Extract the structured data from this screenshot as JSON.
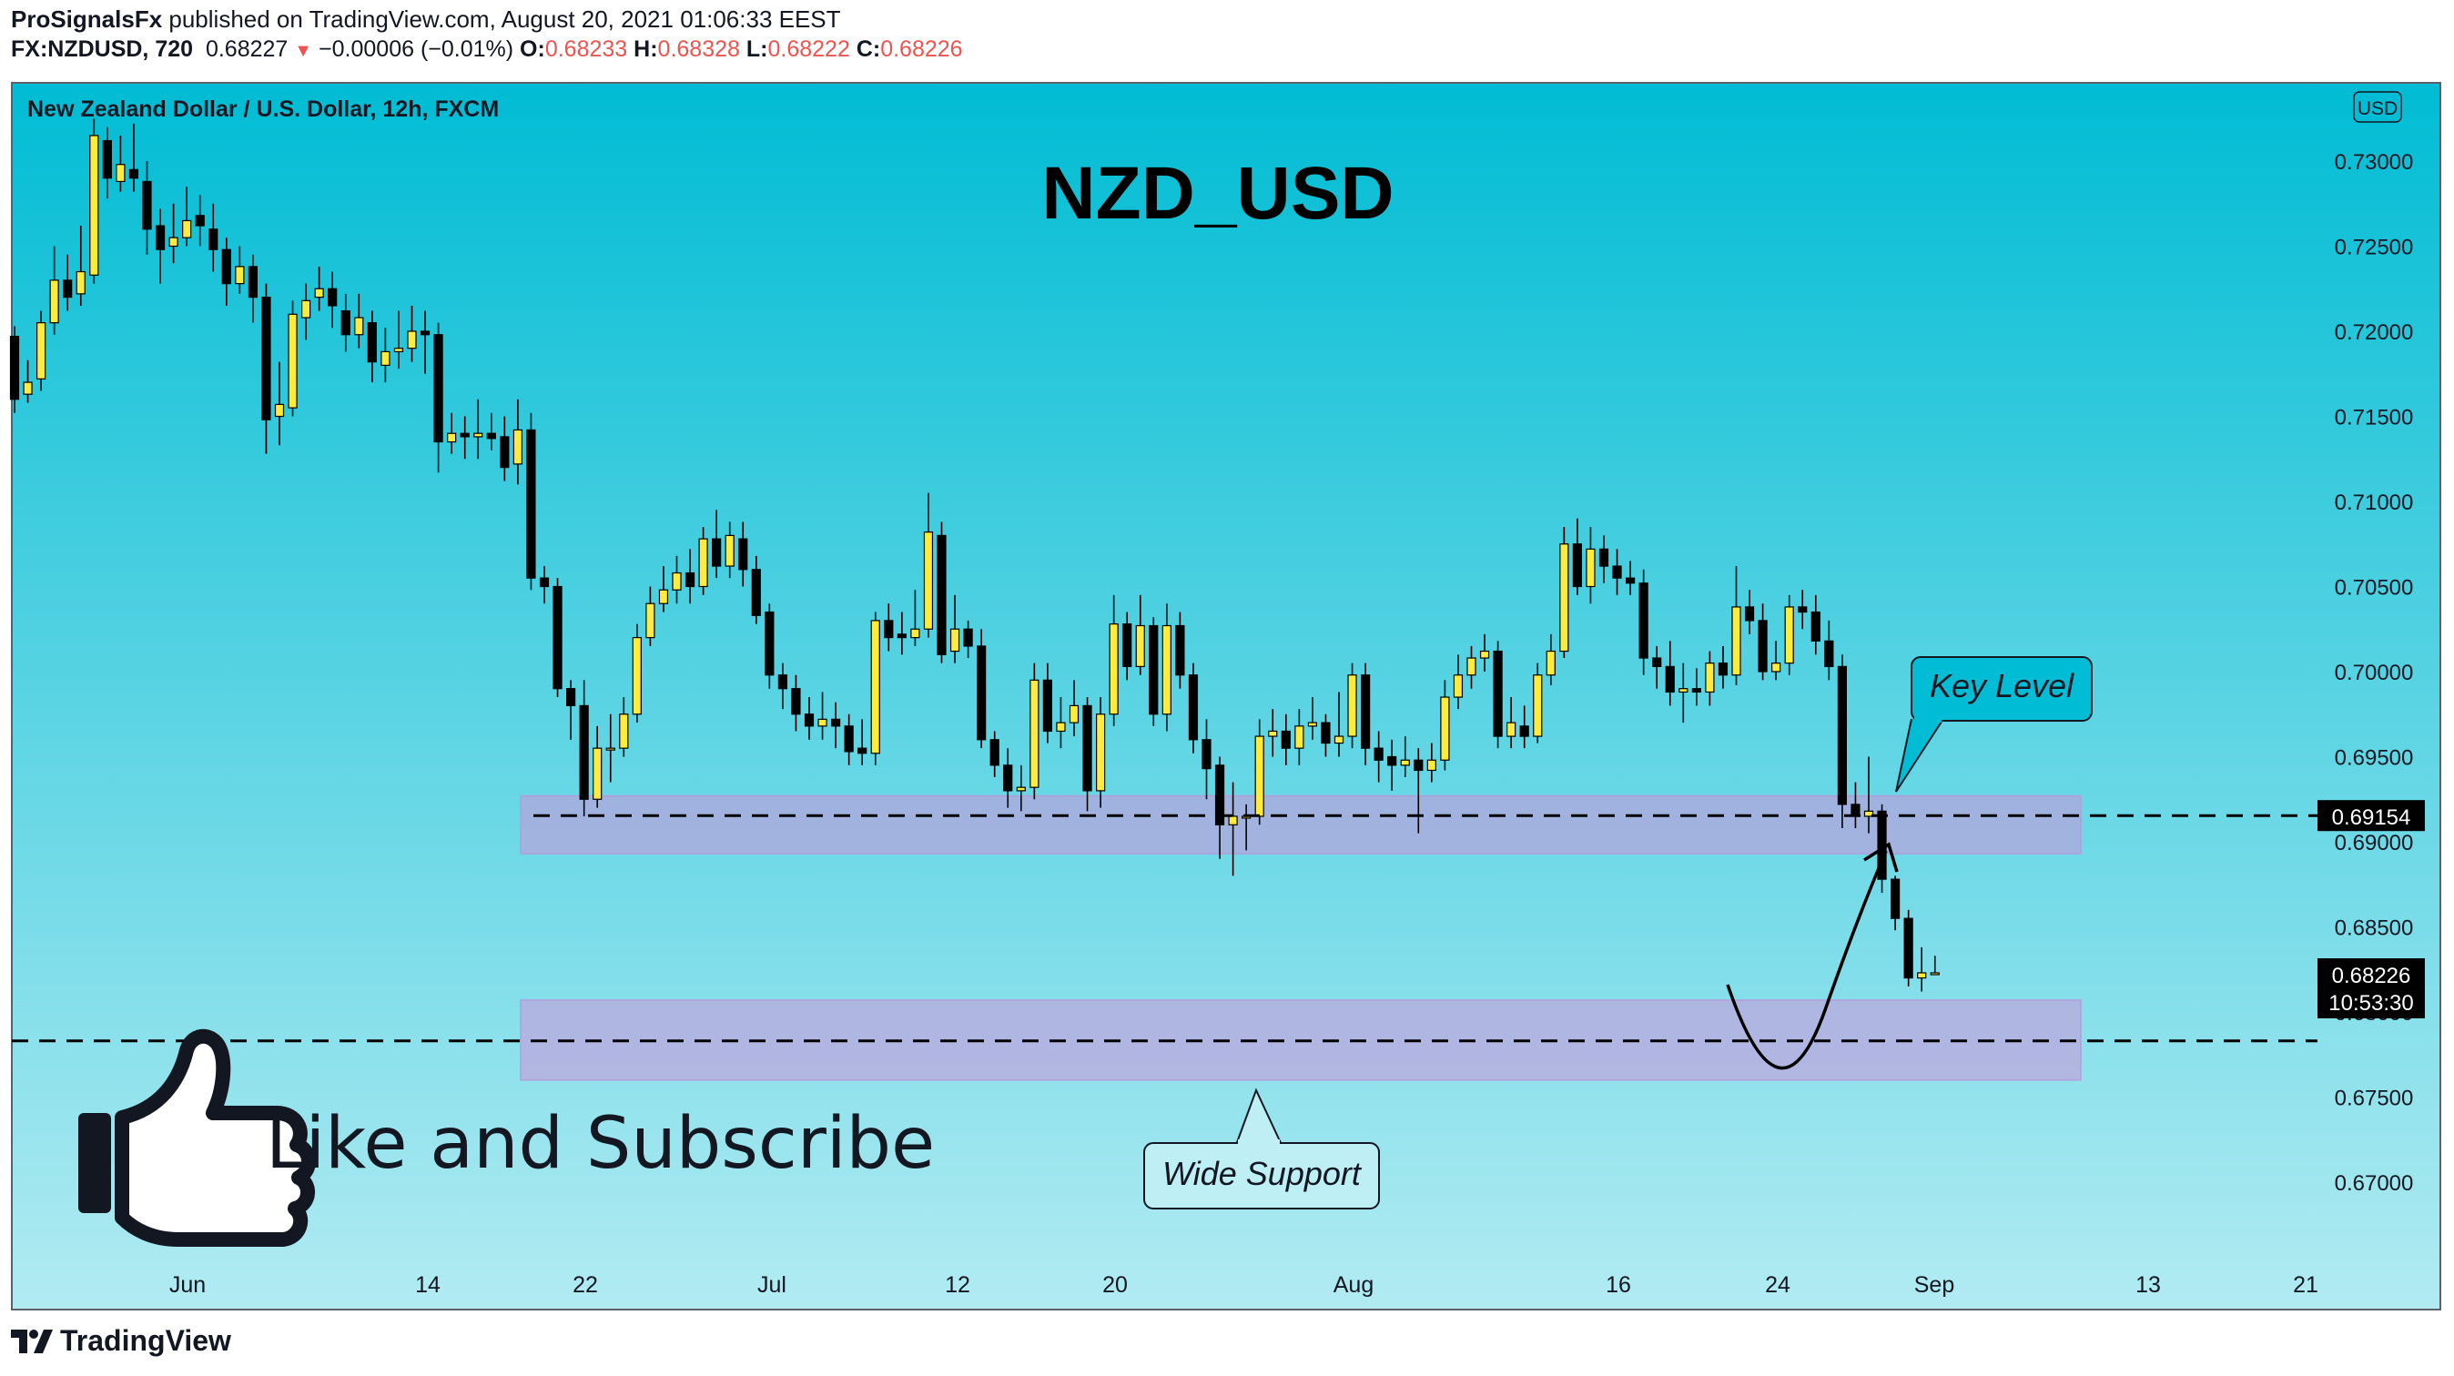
{
  "header": {
    "author": "ProSignalsFx",
    "published_text": "published on TradingView.com, August 20, 2021 01:06:33 EEST",
    "symbol": "FX:NZDUSD, 720",
    "last": "0.68227",
    "change_arrow": "▼",
    "change": "−0.00006 (−0.01%)",
    "o_label": "O:",
    "o_value": "0.68233",
    "h_label": "H:",
    "h_value": "0.68328",
    "l_label": "L:",
    "l_value": "0.68222",
    "c_label": "C:",
    "c_value": "0.68226"
  },
  "legend": {
    "text": "New Zealand Dollar / U.S. Dollar, 12h, FXCM"
  },
  "currency_badge": "USD",
  "chart_title": "NZD_USD",
  "annotations": {
    "key_level": "Key Level",
    "wide_support": "Wide Support",
    "cta": "Like and Subscribe"
  },
  "price_labels": {
    "key_level_price": "0.69154",
    "last_price": "0.68226",
    "countdown": "10:53:30"
  },
  "footer": {
    "brand": "TradingView"
  },
  "colors": {
    "bg_top": "#00bcd4",
    "bg_bottom": "#b2ebf2",
    "bull": "#ffeb3b",
    "bear": "#000000",
    "zone": "#ce93d8",
    "text": "#131722",
    "red": "#ef5350"
  },
  "chart_data": {
    "type": "candlestick",
    "timeframe": "12h",
    "y_axis": {
      "ticks": [
        "0.73000",
        "0.72500",
        "0.72000",
        "0.71500",
        "0.71000",
        "0.70500",
        "0.70000",
        "0.69500",
        "0.69000",
        "0.68500",
        "0.68000",
        "0.67500",
        "0.67000"
      ],
      "range": [
        0.664,
        0.7345
      ]
    },
    "x_axis": {
      "ticks": [
        "Jun",
        "14",
        "22",
        "Jul",
        "12",
        "20",
        "Aug",
        "16",
        "24",
        "Sep",
        "13",
        "21"
      ],
      "range_candles": [
        0,
        174
      ]
    },
    "zones": [
      {
        "name": "Key Level",
        "from": 0.6893,
        "to": 0.6927,
        "dashed_level": 0.69154
      },
      {
        "name": "Wide Support",
        "from": 0.676,
        "to": 0.6807,
        "dashed_level": 0.6783
      }
    ],
    "projection": {
      "from_price": 0.682,
      "low_price": 0.6767,
      "to_price": 0.69
    },
    "candles": [
      [
        0,
        0.7197,
        0.716,
        0.7203,
        0.7152
      ],
      [
        1,
        0.7163,
        0.717,
        0.7183,
        0.7158
      ],
      [
        2,
        0.7172,
        0.7205,
        0.7212,
        0.7165
      ],
      [
        3,
        0.7205,
        0.723,
        0.725,
        0.7198
      ],
      [
        4,
        0.723,
        0.722,
        0.7245,
        0.7212
      ],
      [
        5,
        0.7222,
        0.7235,
        0.7262,
        0.7215
      ],
      [
        6,
        0.7233,
        0.7315,
        0.7325,
        0.7228
      ],
      [
        7,
        0.7312,
        0.729,
        0.732,
        0.7278
      ],
      [
        8,
        0.7288,
        0.7298,
        0.7315,
        0.7282
      ],
      [
        9,
        0.7295,
        0.729,
        0.7322,
        0.7282
      ],
      [
        10,
        0.7288,
        0.726,
        0.73,
        0.7245
      ],
      [
        11,
        0.7262,
        0.7248,
        0.7272,
        0.7228
      ],
      [
        12,
        0.725,
        0.7255,
        0.7275,
        0.724
      ],
      [
        13,
        0.7255,
        0.7265,
        0.7285,
        0.725
      ],
      [
        14,
        0.7268,
        0.7262,
        0.728,
        0.725
      ],
      [
        15,
        0.726,
        0.7248,
        0.7275,
        0.7235
      ],
      [
        16,
        0.7248,
        0.7228,
        0.7255,
        0.7215
      ],
      [
        17,
        0.7228,
        0.7238,
        0.725,
        0.7222
      ],
      [
        18,
        0.7238,
        0.722,
        0.7245,
        0.7205
      ],
      [
        19,
        0.722,
        0.7148,
        0.7228,
        0.7128
      ],
      [
        20,
        0.715,
        0.7157,
        0.7182,
        0.7133
      ],
      [
        21,
        0.7155,
        0.721,
        0.7218,
        0.715
      ],
      [
        22,
        0.7208,
        0.7218,
        0.7228,
        0.7195
      ],
      [
        23,
        0.722,
        0.7225,
        0.7238,
        0.7212
      ],
      [
        24,
        0.7225,
        0.7215,
        0.7235,
        0.7202
      ],
      [
        25,
        0.7212,
        0.7198,
        0.7222,
        0.7188
      ],
      [
        26,
        0.7198,
        0.7208,
        0.7222,
        0.719
      ],
      [
        27,
        0.7205,
        0.7182,
        0.7212,
        0.717
      ],
      [
        28,
        0.718,
        0.7188,
        0.7202,
        0.717
      ],
      [
        29,
        0.7188,
        0.719,
        0.7212,
        0.7178
      ],
      [
        30,
        0.719,
        0.72,
        0.7215,
        0.7182
      ],
      [
        31,
        0.72,
        0.7198,
        0.7212,
        0.7175
      ],
      [
        32,
        0.7198,
        0.7135,
        0.7205,
        0.7117
      ],
      [
        33,
        0.7135,
        0.714,
        0.7152,
        0.7128
      ],
      [
        34,
        0.714,
        0.7138,
        0.715,
        0.7125
      ],
      [
        35,
        0.7138,
        0.714,
        0.716,
        0.7125
      ],
      [
        36,
        0.714,
        0.7137,
        0.7152,
        0.713
      ],
      [
        37,
        0.7138,
        0.712,
        0.715,
        0.7112
      ],
      [
        38,
        0.7122,
        0.7142,
        0.716,
        0.711
      ],
      [
        39,
        0.7142,
        0.7055,
        0.7152,
        0.7048
      ],
      [
        40,
        0.7055,
        0.705,
        0.7062,
        0.704
      ],
      [
        41,
        0.705,
        0.699,
        0.7055,
        0.6985
      ],
      [
        42,
        0.699,
        0.698,
        0.6995,
        0.696
      ],
      [
        43,
        0.698,
        0.6925,
        0.6995,
        0.6915
      ],
      [
        44,
        0.6925,
        0.6955,
        0.6968,
        0.692
      ],
      [
        45,
        0.6955,
        0.6955,
        0.6975,
        0.6935
      ],
      [
        46,
        0.6955,
        0.6975,
        0.6985,
        0.695
      ],
      [
        47,
        0.6975,
        0.702,
        0.7028,
        0.697
      ],
      [
        48,
        0.702,
        0.704,
        0.705,
        0.7015
      ],
      [
        49,
        0.704,
        0.7048,
        0.7062,
        0.7035
      ],
      [
        50,
        0.7048,
        0.7058,
        0.7068,
        0.704
      ],
      [
        51,
        0.7058,
        0.705,
        0.7072,
        0.704
      ],
      [
        52,
        0.705,
        0.7078,
        0.7085,
        0.7045
      ],
      [
        53,
        0.7078,
        0.7062,
        0.7095,
        0.7055
      ],
      [
        54,
        0.7062,
        0.708,
        0.7088,
        0.7055
      ],
      [
        55,
        0.7078,
        0.706,
        0.7088,
        0.705
      ],
      [
        56,
        0.706,
        0.7033,
        0.7068,
        0.7028
      ],
      [
        57,
        0.7035,
        0.6998,
        0.704,
        0.699
      ],
      [
        58,
        0.6998,
        0.699,
        0.7005,
        0.6978
      ],
      [
        59,
        0.699,
        0.6975,
        0.6998,
        0.6965
      ],
      [
        60,
        0.6975,
        0.6968,
        0.6985,
        0.696
      ],
      [
        61,
        0.6968,
        0.6972,
        0.6988,
        0.696
      ],
      [
        62,
        0.6972,
        0.6968,
        0.6982,
        0.6955
      ],
      [
        63,
        0.6968,
        0.6953,
        0.6975,
        0.6945
      ],
      [
        64,
        0.6955,
        0.6952,
        0.6972,
        0.6945
      ],
      [
        65,
        0.6952,
        0.703,
        0.7035,
        0.6945
      ],
      [
        66,
        0.703,
        0.702,
        0.704,
        0.7012
      ],
      [
        67,
        0.7022,
        0.702,
        0.7035,
        0.701
      ],
      [
        68,
        0.702,
        0.7025,
        0.7048,
        0.7015
      ],
      [
        69,
        0.7025,
        0.7082,
        0.7105,
        0.702
      ],
      [
        70,
        0.708,
        0.701,
        0.7088,
        0.7005
      ],
      [
        71,
        0.7012,
        0.7025,
        0.7045,
        0.7005
      ],
      [
        72,
        0.7025,
        0.7015,
        0.703,
        0.7008
      ],
      [
        73,
        0.7015,
        0.696,
        0.7025,
        0.6955
      ],
      [
        74,
        0.696,
        0.6945,
        0.6965,
        0.6938
      ],
      [
        75,
        0.6945,
        0.693,
        0.6955,
        0.692
      ],
      [
        76,
        0.693,
        0.6932,
        0.6945,
        0.6918
      ],
      [
        77,
        0.6932,
        0.6995,
        0.7005,
        0.6925
      ],
      [
        78,
        0.6995,
        0.6965,
        0.7005,
        0.6958
      ],
      [
        79,
        0.6965,
        0.697,
        0.6985,
        0.6955
      ],
      [
        80,
        0.697,
        0.698,
        0.6995,
        0.6962
      ],
      [
        81,
        0.698,
        0.693,
        0.6985,
        0.6918
      ],
      [
        82,
        0.693,
        0.6975,
        0.6985,
        0.692
      ],
      [
        83,
        0.6975,
        0.7028,
        0.7045,
        0.6968
      ],
      [
        84,
        0.7028,
        0.7003,
        0.7035,
        0.6995
      ],
      [
        85,
        0.7003,
        0.7027,
        0.7045,
        0.6998
      ],
      [
        86,
        0.7027,
        0.6975,
        0.7032,
        0.6968
      ],
      [
        87,
        0.6975,
        0.7027,
        0.704,
        0.6965
      ],
      [
        88,
        0.7027,
        0.6998,
        0.7035,
        0.699
      ],
      [
        89,
        0.6998,
        0.696,
        0.7005,
        0.6952
      ],
      [
        90,
        0.696,
        0.6943,
        0.6972,
        0.6925
      ],
      [
        91,
        0.6945,
        0.691,
        0.695,
        0.689
      ],
      [
        92,
        0.691,
        0.6915,
        0.6935,
        0.688
      ],
      [
        93,
        0.6915,
        0.6915,
        0.6922,
        0.6895
      ],
      [
        94,
        0.6915,
        0.6962,
        0.6972,
        0.691
      ],
      [
        95,
        0.6962,
        0.6965,
        0.6978,
        0.695
      ],
      [
        96,
        0.6965,
        0.6955,
        0.6975,
        0.6945
      ],
      [
        97,
        0.6955,
        0.6968,
        0.6978,
        0.6945
      ],
      [
        98,
        0.6968,
        0.697,
        0.6985,
        0.696
      ],
      [
        99,
        0.697,
        0.6958,
        0.6975,
        0.695
      ],
      [
        100,
        0.6958,
        0.6962,
        0.6988,
        0.695
      ],
      [
        101,
        0.6962,
        0.6998,
        0.7005,
        0.6955
      ],
      [
        102,
        0.6998,
        0.6955,
        0.7005,
        0.6945
      ],
      [
        103,
        0.6955,
        0.6948,
        0.6965,
        0.6935
      ],
      [
        104,
        0.695,
        0.6945,
        0.696,
        0.693
      ],
      [
        105,
        0.6945,
        0.6948,
        0.6962,
        0.6938
      ],
      [
        106,
        0.6948,
        0.6942,
        0.6955,
        0.6905
      ],
      [
        107,
        0.6942,
        0.6948,
        0.6958,
        0.6935
      ],
      [
        108,
        0.6948,
        0.6985,
        0.6995,
        0.6942
      ],
      [
        109,
        0.6985,
        0.6998,
        0.701,
        0.6978
      ],
      [
        110,
        0.6998,
        0.7008,
        0.7015,
        0.699
      ],
      [
        111,
        0.7008,
        0.7012,
        0.7022,
        0.7
      ],
      [
        112,
        0.7012,
        0.6962,
        0.7018,
        0.6955
      ],
      [
        113,
        0.6962,
        0.697,
        0.6985,
        0.6955
      ],
      [
        114,
        0.6968,
        0.6962,
        0.698,
        0.6955
      ],
      [
        115,
        0.6962,
        0.6998,
        0.7005,
        0.6958
      ],
      [
        116,
        0.6998,
        0.7012,
        0.7022,
        0.6992
      ],
      [
        117,
        0.7012,
        0.7075,
        0.7085,
        0.7008
      ],
      [
        118,
        0.7075,
        0.705,
        0.709,
        0.7045
      ],
      [
        119,
        0.705,
        0.7072,
        0.7085,
        0.704
      ],
      [
        120,
        0.7072,
        0.7062,
        0.708,
        0.7052
      ],
      [
        121,
        0.7062,
        0.7055,
        0.7072,
        0.7045
      ],
      [
        122,
        0.7055,
        0.7052,
        0.7065,
        0.7045
      ],
      [
        123,
        0.7052,
        0.7008,
        0.706,
        0.6998
      ],
      [
        124,
        0.7008,
        0.7003,
        0.7015,
        0.699
      ],
      [
        125,
        0.7003,
        0.6988,
        0.7018,
        0.698
      ],
      [
        126,
        0.6988,
        0.699,
        0.7005,
        0.697
      ],
      [
        127,
        0.699,
        0.6988,
        0.7002,
        0.698
      ],
      [
        128,
        0.6988,
        0.7005,
        0.7012,
        0.698
      ],
      [
        129,
        0.7005,
        0.6998,
        0.7015,
        0.699
      ],
      [
        130,
        0.6998,
        0.7038,
        0.7062,
        0.6992
      ],
      [
        131,
        0.7038,
        0.703,
        0.7048,
        0.7022
      ],
      [
        132,
        0.703,
        0.7,
        0.704,
        0.6995
      ],
      [
        133,
        0.7,
        0.7005,
        0.7018,
        0.6995
      ],
      [
        134,
        0.7005,
        0.7038,
        0.7045,
        0.6998
      ],
      [
        135,
        0.7038,
        0.7035,
        0.7048,
        0.7025
      ],
      [
        136,
        0.7035,
        0.7018,
        0.7045,
        0.701
      ],
      [
        137,
        0.7018,
        0.7003,
        0.703,
        0.6995
      ],
      [
        138,
        0.7003,
        0.6922,
        0.701,
        0.6908
      ],
      [
        139,
        0.6922,
        0.6915,
        0.6935,
        0.6908
      ],
      [
        140,
        0.6915,
        0.6918,
        0.695,
        0.6905
      ],
      [
        141,
        0.6918,
        0.6878,
        0.6922,
        0.687
      ],
      [
        142,
        0.6878,
        0.6855,
        0.688,
        0.6848
      ],
      [
        143,
        0.6855,
        0.682,
        0.686,
        0.6815
      ],
      [
        144,
        0.682,
        0.6823,
        0.6838,
        0.6812
      ],
      [
        145,
        0.6823,
        0.6823,
        0.6833,
        0.6822
      ]
    ]
  }
}
